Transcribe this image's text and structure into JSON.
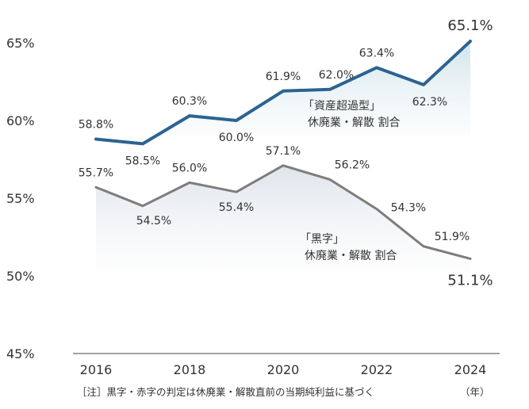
{
  "chart_data": {
    "type": "line",
    "x": [
      2016,
      2017,
      2018,
      2019,
      2020,
      2021,
      2022,
      2023,
      2024
    ],
    "xticks": [
      "2016",
      "2018",
      "2020",
      "2022",
      "2024"
    ],
    "yticks": [
      "65%",
      "60%",
      "55%",
      "50%",
      "45%"
    ],
    "ylim": [
      45,
      65
    ],
    "series": [
      {
        "name": "「資産超過型」休廃業・解散 割合",
        "label_lines": [
          "「資産超過型」",
          "休廃業・解散 割合"
        ],
        "color": "#2c6391",
        "values": [
          58.8,
          58.5,
          60.3,
          60.0,
          61.9,
          62.0,
          63.4,
          62.3,
          65.1
        ],
        "labels": [
          "58.8%",
          "58.5%",
          "60.3%",
          "60.0%",
          "61.9%",
          "62.0%",
          "63.4%",
          "62.3%",
          "65.1%"
        ]
      },
      {
        "name": "「黒字」休廃業・解散 割合",
        "label_lines": [
          "「黒字」",
          "休廃業・解散 割合"
        ],
        "color": "#7d7d7d",
        "values": [
          55.7,
          54.5,
          56.0,
          55.4,
          57.1,
          56.2,
          54.3,
          51.9,
          51.1
        ],
        "labels": [
          "55.7%",
          "54.5%",
          "56.0%",
          "55.4%",
          "57.1%",
          "56.2%",
          "54.3%",
          "51.9%",
          "51.1%"
        ]
      }
    ]
  },
  "footnote": "［注］黒字・赤字の判定は休廃業・解散直前の当期純利益に基づく",
  "unit_label": "（年）"
}
